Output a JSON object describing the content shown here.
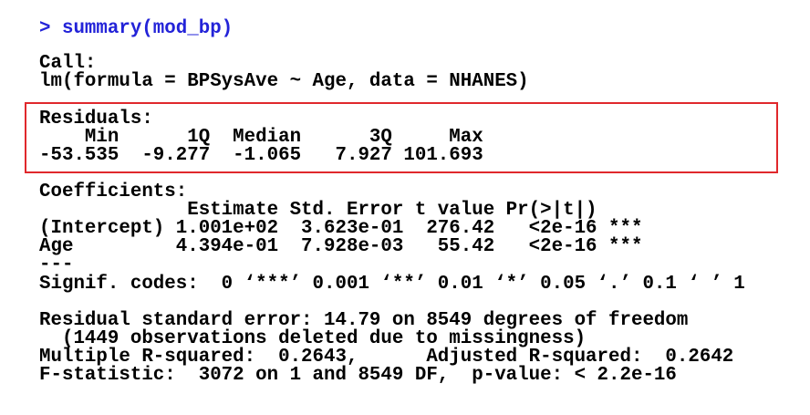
{
  "command": "> summary(mod_bp)",
  "call": {
    "label": "Call:",
    "formula": "lm(formula = BPSysAve ~ Age, data = NHANES)"
  },
  "residuals": {
    "label": "Residuals:",
    "header": "    Min      1Q  Median      3Q     Max",
    "values": "-53.535  -9.277  -1.065   7.927 101.693"
  },
  "coefficients": {
    "label": "Coefficients:",
    "header": "             Estimate Std. Error t value Pr(>|t|)",
    "rows": [
      "(Intercept) 1.001e+02  3.623e-01  276.42   <2e-16 ***",
      "Age         4.394e-01  7.928e-03   55.42   <2e-16 ***"
    ],
    "separator": "---",
    "signif": "Signif. codes:  0 ‘***’ 0.001 ‘**’ 0.01 ‘*’ 0.05 ‘.’ 0.1 ‘ ’ 1"
  },
  "fit": [
    "Residual standard error: 14.79 on 8549 degrees of freedom",
    "  (1449 observations deleted due to missingness)",
    "Multiple R-squared:  0.2643,      Adjusted R-squared:  0.2642",
    "F-statistic:  3072 on 1 and 8549 DF,  p-value: < 2.2e-16"
  ]
}
